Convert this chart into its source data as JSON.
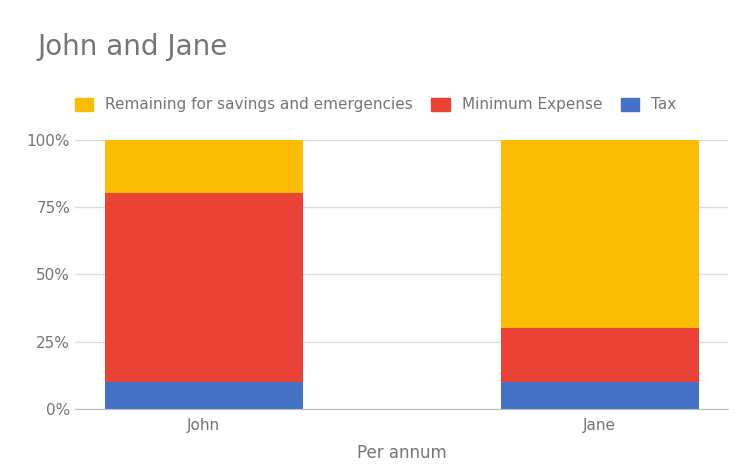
{
  "title": "John and Jane",
  "xlabel": "Per annum",
  "categories": [
    "John",
    "Jane"
  ],
  "series": [
    {
      "label": "Tax",
      "values": [
        10,
        10
      ],
      "color": "#4472C4"
    },
    {
      "label": "Minimum Expense",
      "values": [
        70,
        20
      ],
      "color": "#EA4335"
    },
    {
      "label": "Remaining for savings and emergencies",
      "values": [
        20,
        70
      ],
      "color": "#FBBC04"
    }
  ],
  "ylim": [
    0,
    100
  ],
  "yticks": [
    0,
    25,
    50,
    75,
    100
  ],
  "ytick_labels": [
    "0%",
    "25%",
    "50%",
    "75%",
    "100%"
  ],
  "background_color": "#ffffff",
  "grid_color": "#dddddd",
  "title_color": "#757575",
  "label_color": "#757575",
  "bar_width": 0.5,
  "title_fontsize": 20,
  "axis_fontsize": 12,
  "legend_fontsize": 11,
  "tick_fontsize": 11
}
